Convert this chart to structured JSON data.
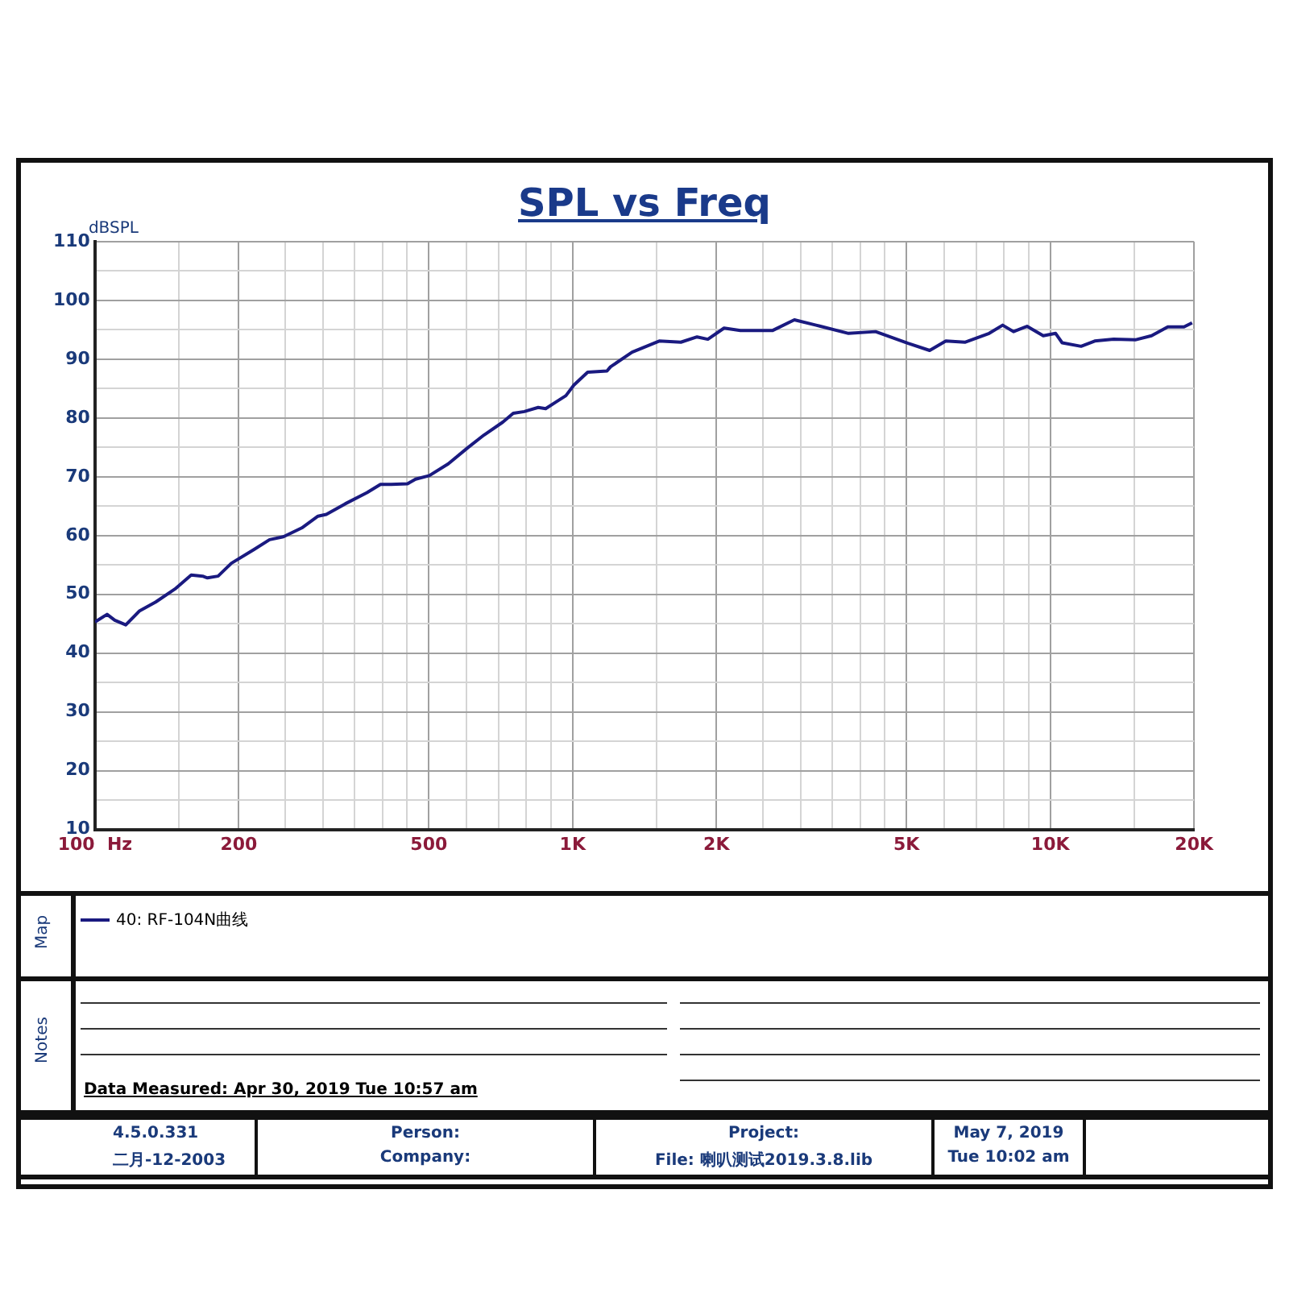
{
  "chart_data": {
    "type": "line",
    "title": "SPL vs Freq",
    "ylabel": "dBSPL",
    "log": "x",
    "grid": true,
    "legend": "bottom",
    "marker": "none",
    "line_style": "solid",
    "xlim": [
      100,
      20000
    ],
    "ylim": [
      10,
      110
    ],
    "xticks": [
      {
        "value": 100,
        "label": "100  Hz"
      },
      {
        "value": 150,
        "label": null
      },
      200,
      {
        "value": 250,
        "label": null
      },
      {
        "value": 300,
        "label": null
      },
      {
        "value": 350,
        "label": null
      },
      {
        "value": 400,
        "label": null
      },
      {
        "value": 450,
        "label": null
      },
      500,
      {
        "value": 600,
        "label": null
      },
      {
        "value": 700,
        "label": null
      },
      {
        "value": 800,
        "label": null
      },
      {
        "value": 900,
        "label": null
      },
      {
        "value": 1000,
        "label": "1K"
      },
      {
        "value": 1500,
        "label": null
      },
      {
        "value": 2000,
        "label": "2K"
      },
      {
        "value": 2500,
        "label": null
      },
      {
        "value": 3000,
        "label": null
      },
      {
        "value": 3500,
        "label": null
      },
      {
        "value": 4000,
        "label": null
      },
      {
        "value": 4500,
        "label": null
      },
      {
        "value": 5000,
        "label": "5K"
      },
      {
        "value": 6000,
        "label": null
      },
      {
        "value": 7000,
        "label": null
      },
      {
        "value": 8000,
        "label": null
      },
      {
        "value": 9000,
        "label": null
      },
      {
        "value": 10000,
        "label": "10K"
      },
      {
        "value": 15000,
        "label": null
      },
      {
        "value": 20000,
        "label": "20K"
      }
    ],
    "yticks": [
      10,
      {
        "value": 15,
        "label": null
      },
      20,
      {
        "value": 25,
        "label": null
      },
      30,
      {
        "value": 35,
        "label": null
      },
      40,
      {
        "value": 45,
        "label": null
      },
      50,
      {
        "value": 55,
        "label": null
      },
      60,
      {
        "value": 65,
        "label": null
      },
      70,
      {
        "value": 75,
        "label": null
      },
      80,
      {
        "value": 85,
        "label": null
      },
      90,
      {
        "value": 95,
        "label": null
      },
      100,
      {
        "value": 105,
        "label": null
      },
      110
    ],
    "series": [
      {
        "name": "40: RF-104N曲线",
        "color": "#1a1a80",
        "x": [
          100,
          106,
          110,
          116,
          124,
          134,
          147,
          159,
          168,
          172,
          181,
          193,
          215,
          232,
          248,
          271,
          293,
          305,
          334,
          371,
          396,
          417,
          451,
          469,
          501,
          549,
          602,
          652,
          714,
          751,
          792,
          847,
          878,
          922,
          968,
          1006,
          1075,
          1180,
          1200,
          1332,
          1518,
          1685,
          1822,
          1919,
          2075,
          2245,
          2624,
          2912,
          3233,
          3781,
          4308,
          5038,
          5591,
          6044,
          6624,
          7447,
          7949,
          8375,
          8940,
          9667,
          10260,
          10590,
          11600,
          12390,
          13570,
          15060,
          16290,
          17620,
          19050,
          19810
        ],
        "values": [
          45.3,
          46.6,
          45.6,
          44.8,
          47.2,
          48.7,
          50.9,
          53.3,
          53.1,
          52.8,
          53.1,
          55.3,
          57.6,
          59.3,
          59.8,
          61.3,
          63.3,
          63.6,
          65.4,
          67.3,
          68.7,
          68.7,
          68.8,
          69.6,
          70.2,
          72.2,
          74.9,
          77.1,
          79.3,
          80.8,
          81.1,
          81.8,
          81.6,
          82.7,
          83.8,
          85.6,
          87.8,
          88.0,
          88.7,
          91.2,
          93.1,
          92.9,
          93.8,
          93.4,
          95.3,
          94.9,
          94.9,
          96.7,
          95.8,
          94.4,
          94.7,
          92.7,
          91.5,
          93.1,
          92.9,
          94.4,
          95.8,
          94.7,
          95.6,
          94.0,
          94.4,
          92.8,
          92.2,
          93.1,
          93.4,
          93.3,
          94.0,
          95.5,
          95.5,
          96.2
        ]
      }
    ],
    "annotations": [
      "Map",
      "Notes",
      "Data Measured: Apr 30, 2019  Tue 10:57 am",
      "4.5.0.331",
      "二月-12-2003",
      "Person:",
      "Company:",
      "Project:",
      "File: 喇叭测试2019.3.8.lib",
      "May  7, 2019",
      "Tue 10:02 am"
    ]
  }
}
